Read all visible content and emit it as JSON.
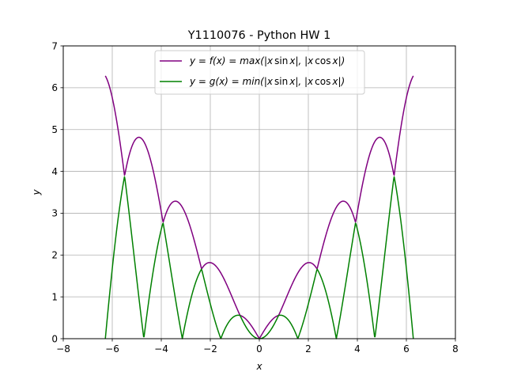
{
  "chart_data": {
    "type": "line",
    "title": "Y1110076 - Python HW 1",
    "xlabel": "x",
    "ylabel": "y",
    "xlim": [
      -8,
      8
    ],
    "ylim": [
      0,
      7
    ],
    "xticks": [
      -8,
      -6,
      -4,
      -2,
      0,
      2,
      4,
      6,
      8
    ],
    "xtick_labels": [
      "−8",
      "−6",
      "−4",
      "−2",
      "0",
      "2",
      "4",
      "6",
      "8"
    ],
    "yticks": [
      0,
      1,
      2,
      3,
      4,
      5,
      6,
      7
    ],
    "ytick_labels": [
      "0",
      "1",
      "2",
      "3",
      "4",
      "5",
      "6",
      "7"
    ],
    "grid": true,
    "legend_position": "top-center",
    "x_domain": [
      -6.283,
      6.283
    ],
    "sample_step": 0.02,
    "series": [
      {
        "name_parts": [
          "y = f(x) = max(|x",
          "sin",
          "x|, |x",
          "cos",
          "x|)"
        ],
        "function": "max(|x sin x|, |x cos x|)",
        "color": "#800080",
        "x": [
          -6.283,
          -5.498,
          -4.869,
          -3.927,
          -3.426,
          -2.356,
          -2.029,
          -0.785,
          0,
          0.785,
          2.029,
          2.356,
          3.426,
          3.927,
          4.869,
          5.498,
          6.283
        ],
        "values": [
          6.28,
          3.89,
          4.81,
          2.78,
          3.29,
          1.67,
          1.82,
          0.56,
          0,
          0.56,
          1.82,
          1.67,
          3.29,
          2.78,
          4.81,
          3.89,
          6.28
        ]
      },
      {
        "name_parts": [
          "y = g(x) = min(|x",
          "sin",
          "x|, |x",
          "cos",
          "x|)"
        ],
        "function": "min(|x sin x|, |x cos x|)",
        "color": "#008000",
        "x": [
          -6.283,
          -5.498,
          -4.712,
          -3.927,
          -3.142,
          -2.356,
          -1.571,
          -0.785,
          0,
          0.785,
          1.571,
          2.356,
          3.142,
          3.927,
          4.712,
          5.498,
          6.283
        ],
        "values": [
          0,
          3.89,
          0,
          2.78,
          0,
          1.67,
          0,
          0.56,
          0,
          0.56,
          0,
          1.67,
          0,
          2.78,
          0,
          3.89,
          0
        ]
      }
    ]
  }
}
